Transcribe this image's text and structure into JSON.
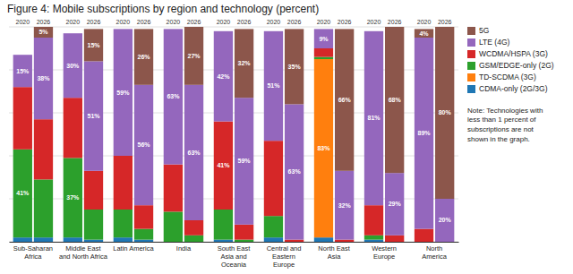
{
  "chart_data": {
    "type": "bar",
    "title": "Figure 4: Mobile subscriptions by region and technology (percent)",
    "categories": [
      "Sub-Saharan\nAfrica",
      "Middle East\nand North Africa",
      "Latin America",
      "India",
      "South East\nAsia and\nOceania",
      "Central and\nEastern\nEurope",
      "North East\nAsia",
      "Western\nEurope",
      "North\nAmerica"
    ],
    "groups": [
      "2020",
      "2026"
    ],
    "stacked": true,
    "data_labels": true,
    "grid": true,
    "legend": "right",
    "tick_labels": "x",
    "ylim": [
      0,
      100
    ],
    "yticks": [
      0,
      20,
      40,
      60,
      80,
      100
    ],
    "series": [
      {
        "name": "CDMA-only (2G/3G)",
        "values": [
          [
            2,
            2
          ],
          [
            2,
            1
          ],
          [
            2,
            1
          ],
          [
            0,
            0
          ],
          [
            1,
            0
          ],
          [
            2,
            0
          ],
          [
            2,
            0
          ],
          [
            1,
            0
          ],
          [
            0,
            0
          ]
        ],
        "value_labels": [
          [
            null,
            null
          ],
          [
            null,
            null
          ],
          [
            null,
            null
          ],
          [
            null,
            null
          ],
          [
            null,
            null
          ],
          [
            null,
            null
          ],
          [
            null,
            null
          ],
          [
            null,
            null
          ],
          [
            null,
            null
          ]
        ]
      },
      {
        "name": "TD-SCDMA (3G)",
        "values": [
          [
            0,
            0
          ],
          [
            0,
            0
          ],
          [
            0,
            0
          ],
          [
            0,
            0
          ],
          [
            0,
            0
          ],
          [
            0,
            0
          ],
          [
            83,
            0
          ],
          [
            0,
            0
          ],
          [
            0,
            0
          ]
        ],
        "value_labels": [
          [
            null,
            null
          ],
          [
            null,
            null
          ],
          [
            null,
            null
          ],
          [
            null,
            null
          ],
          [
            null,
            null
          ],
          [
            null,
            null
          ],
          [
            "83%",
            null
          ],
          [
            null,
            null
          ],
          [
            null,
            null
          ]
        ]
      },
      {
        "name": "GSM/EDGE-only (2G)",
        "values": [
          [
            41,
            27
          ],
          [
            37,
            14
          ],
          [
            13,
            5
          ],
          [
            14,
            3
          ],
          [
            14,
            1
          ],
          [
            10,
            0
          ],
          [
            1,
            0
          ],
          [
            2,
            0
          ],
          [
            0,
            0
          ]
        ],
        "value_labels": [
          [
            "41%",
            null
          ],
          [
            "37%",
            null
          ],
          [
            null,
            null
          ],
          [
            null,
            null
          ],
          [
            null,
            null
          ],
          [
            null,
            null
          ],
          [
            null,
            null
          ],
          [
            null,
            null
          ],
          [
            null,
            null
          ]
        ]
      },
      {
        "name": "WCDMA/HSPA (3G)",
        "values": [
          [
            29,
            28
          ],
          [
            28,
            18
          ],
          [
            25,
            11
          ],
          [
            22,
            7
          ],
          [
            41,
            7
          ],
          [
            35,
            1
          ],
          [
            4,
            1
          ],
          [
            14,
            3
          ],
          [
            6,
            0
          ]
        ],
        "value_labels": [
          [
            null,
            null
          ],
          [
            null,
            null
          ],
          [
            null,
            null
          ],
          [
            null,
            null
          ],
          [
            "41%",
            null
          ],
          [
            null,
            null
          ],
          [
            null,
            null
          ],
          [
            null,
            null
          ],
          [
            null,
            null
          ]
        ]
      },
      {
        "name": "LTE (4G)",
        "values": [
          [
            15,
            38
          ],
          [
            30,
            51
          ],
          [
            59,
            56
          ],
          [
            63,
            63
          ],
          [
            42,
            59
          ],
          [
            51,
            63
          ],
          [
            9,
            32
          ],
          [
            81,
            29
          ],
          [
            89,
            20
          ]
        ],
        "value_labels": [
          [
            "15%",
            "38%"
          ],
          [
            "30%",
            "51%"
          ],
          [
            "59%",
            "56%"
          ],
          [
            "63%",
            "63%"
          ],
          [
            "42%",
            "59%"
          ],
          [
            "51%",
            "63%"
          ],
          [
            "9%",
            "32%"
          ],
          [
            "81%",
            "29%"
          ],
          [
            "89%",
            "20%"
          ]
        ]
      },
      {
        "name": "5G",
        "values": [
          [
            0,
            5
          ],
          [
            0,
            15
          ],
          [
            0,
            26
          ],
          [
            0,
            27
          ],
          [
            0,
            32
          ],
          [
            0,
            35
          ],
          [
            0,
            66
          ],
          [
            0,
            68
          ],
          [
            4,
            80
          ]
        ],
        "value_labels": [
          [
            null,
            "5%"
          ],
          [
            null,
            "15%"
          ],
          [
            null,
            "26%"
          ],
          [
            null,
            "27%"
          ],
          [
            null,
            "32%"
          ],
          [
            null,
            "35%"
          ],
          [
            null,
            "66%"
          ],
          [
            null,
            "68%"
          ],
          [
            "4%",
            "80%"
          ]
        ]
      }
    ],
    "annotations": [
      "Note: Technologies with\nless than 1 percent of\nsubscriptions are not\nshown in the graph."
    ]
  }
}
